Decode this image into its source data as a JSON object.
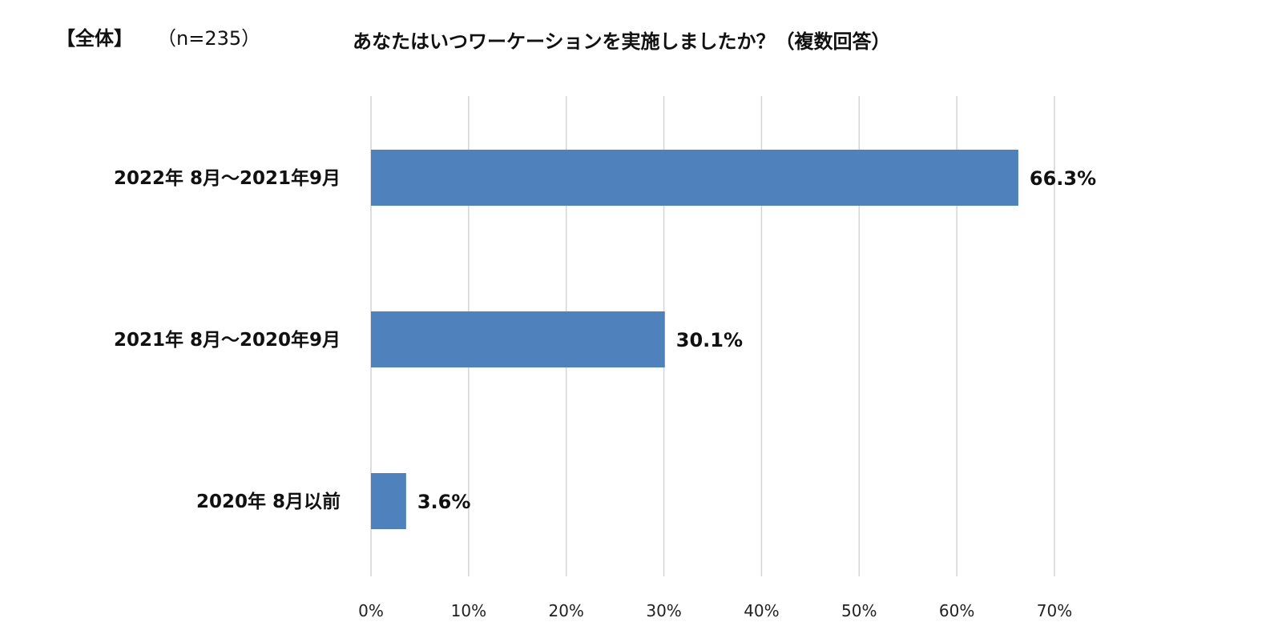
{
  "header": {
    "segment_label": "【全体】",
    "sample_size": "（n=235）"
  },
  "chart_data": {
    "type": "bar",
    "orientation": "horizontal",
    "title": "あなたはいつワーケーションを実施しましたか？（複数回答）",
    "categories": [
      "2022年 8月～2021年9月",
      "2021年 8月～2020年9月",
      "2020年 8月以前"
    ],
    "values": [
      66.3,
      30.1,
      3.6
    ],
    "value_labels": [
      "66.3%",
      "30.1%",
      "3.6%"
    ],
    "xlim": [
      0,
      70
    ],
    "xticks": [
      0,
      10,
      20,
      30,
      40,
      50,
      60,
      70
    ],
    "xtick_labels": [
      "0%",
      "10%",
      "20%",
      "30%",
      "40%",
      "50%",
      "60%",
      "70%"
    ],
    "grid": "vertical",
    "legend": "none",
    "bar_color": "#4f81bd"
  }
}
